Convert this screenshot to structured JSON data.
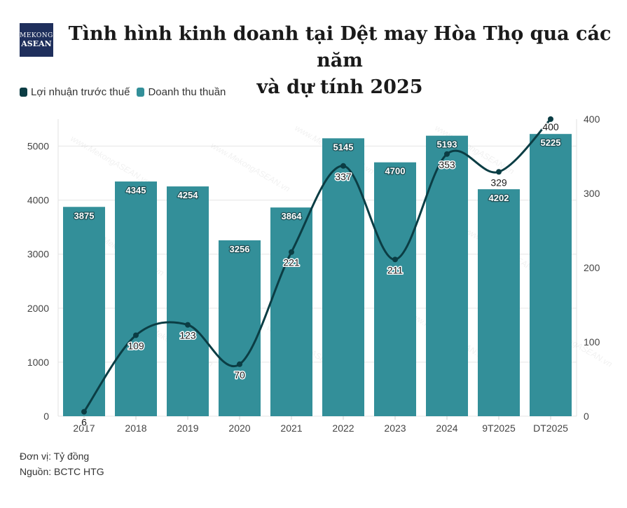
{
  "logo": {
    "line1": "MEKONG",
    "line2": "ASEAN"
  },
  "title_line1": "Tình hình kinh doanh tại Dệt may Hòa Thọ qua các năm",
  "title_line2": "và dự tính 2025",
  "footer": {
    "unit": "Đơn vị: Tỷ đồng",
    "source": "Nguồn: BCTC HTG"
  },
  "watermark": "www.MekongASEAN.vn",
  "colors": {
    "bar": "#338f99",
    "line": "#0b3d44",
    "grid": "#e6e6e6"
  },
  "chart_data": {
    "type": "bar",
    "categories": [
      "2017",
      "2018",
      "2019",
      "2020",
      "2021",
      "2022",
      "2023",
      "2024",
      "9T2025",
      "DT2025"
    ],
    "series": [
      {
        "name": "Lợi nhuận trước thuế",
        "type": "line",
        "axis": "right",
        "values": [
          6,
          109,
          123,
          70,
          221,
          337,
          211,
          353,
          329,
          400
        ]
      },
      {
        "name": "Doanh thu thuần",
        "type": "bar",
        "axis": "left",
        "values": [
          3875,
          4345,
          4254,
          3256,
          3864,
          5145,
          4700,
          5193,
          4202,
          5225
        ]
      }
    ],
    "y_left": {
      "ticks": [
        0,
        1000,
        2000,
        3000,
        4000,
        5000
      ],
      "ylim": [
        0,
        5500
      ]
    },
    "y_right": {
      "ticks": [
        0,
        100,
        200,
        300,
        400
      ],
      "ylim": [
        0,
        400
      ]
    },
    "legend": "top-left",
    "grid": true
  }
}
